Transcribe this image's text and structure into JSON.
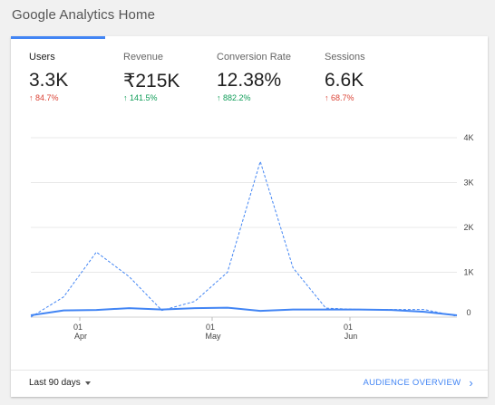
{
  "page": {
    "title": "Google Analytics Home"
  },
  "metrics": [
    {
      "label": "Users",
      "value": "3.3K",
      "change": "84.7%",
      "direction": "down"
    },
    {
      "label": "Revenue",
      "value": "₹215K",
      "change": "141.5%",
      "direction": "up"
    },
    {
      "label": "Conversion Rate",
      "value": "12.38%",
      "change": "882.2%",
      "direction": "up"
    },
    {
      "label": "Sessions",
      "value": "6.6K",
      "change": "68.7%",
      "direction": "down"
    }
  ],
  "arrows": {
    "up": "↑",
    "down": "↑"
  },
  "colors": {
    "accent": "#4285f4",
    "up": "#0f9d58",
    "down": "#db4437"
  },
  "chart_data": {
    "type": "line",
    "x_ticks": [
      {
        "day": "01",
        "month": "Apr"
      },
      {
        "day": "01",
        "month": "May"
      },
      {
        "day": "01",
        "month": "Jun"
      }
    ],
    "y_ticks": [
      "4K",
      "3K",
      "2K",
      "1K",
      "0"
    ],
    "ylim": [
      0,
      4000
    ],
    "grid": true,
    "series": [
      {
        "style": "solid",
        "values": [
          40,
          150,
          160,
          200,
          170,
          200,
          210,
          140,
          170,
          170,
          170,
          160,
          120,
          40
        ]
      },
      {
        "style": "dashed",
        "values": [
          0,
          450,
          1450,
          900,
          150,
          350,
          1000,
          3470,
          1100,
          200,
          170,
          170,
          170,
          20
        ]
      }
    ]
  },
  "footer": {
    "range_label": "Last 90 days",
    "link_label": "AUDIENCE OVERVIEW",
    "link_icon": "›"
  }
}
